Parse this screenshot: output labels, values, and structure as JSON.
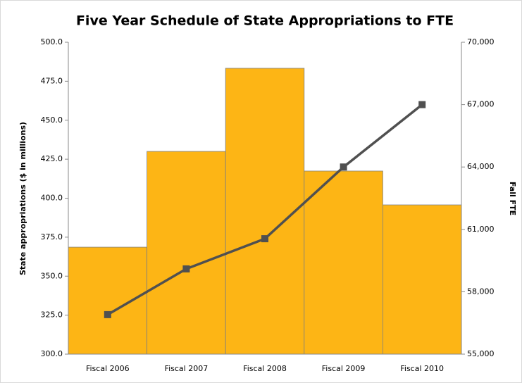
{
  "chart_data": {
    "type": "bar",
    "title": "Five Year Schedule of State Appropriations to FTE",
    "ylabel": "State appropriations ($ in millions)",
    "y2label": "Fall FTE",
    "categories": [
      "Fiscal 2006",
      "Fiscal 2007",
      "Fiscal 2008",
      "Fiscal 2009",
      "Fiscal 2010"
    ],
    "series": [
      {
        "type": "bar",
        "color": "#fdb515",
        "values": [
          368.6,
          430,
          483.3,
          417.4,
          395.7
        ]
      },
      {
        "type": "line",
        "axis": "y2",
        "color": "#505050",
        "values": [
          56900,
          59100,
          60550,
          64000,
          67000
        ]
      }
    ],
    "ylim": [
      300,
      500
    ],
    "yticks": [
      {
        "value": 300,
        "label": "300.0"
      },
      {
        "value": 325,
        "label": "325.0"
      },
      {
        "value": 350,
        "label": "350.0"
      },
      {
        "value": 375,
        "label": "375.0"
      },
      {
        "value": 400,
        "label": "400.0"
      },
      {
        "value": 425,
        "label": "425.0"
      },
      {
        "value": 450,
        "label": "450.0"
      },
      {
        "value": 475,
        "label": "475.0"
      },
      {
        "value": 500,
        "label": "500.0"
      }
    ],
    "y2lim": [
      55000,
      70000
    ],
    "y2ticks": [
      {
        "value": 55000,
        "label": "55,000"
      },
      {
        "value": 58000,
        "label": "58,000"
      },
      {
        "value": 61000,
        "label": "61,000"
      },
      {
        "value": 64000,
        "label": "64,000"
      },
      {
        "value": 67000,
        "label": "67,000"
      },
      {
        "value": 70000,
        "label": "70,000"
      }
    ]
  }
}
